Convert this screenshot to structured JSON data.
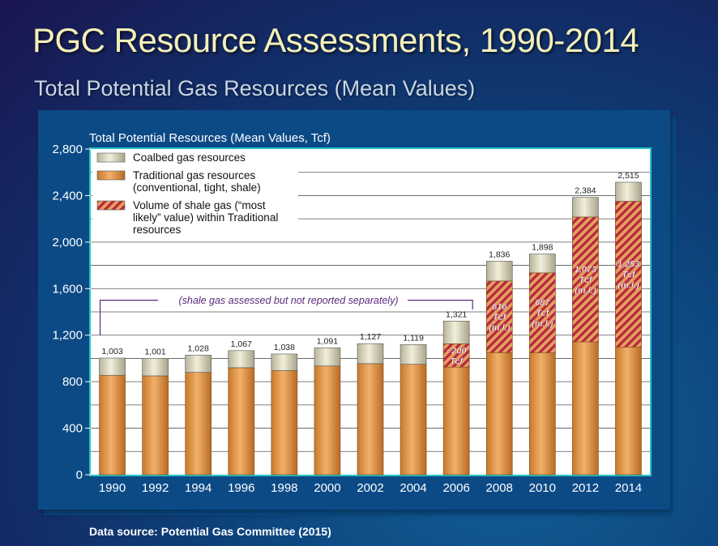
{
  "slide": {
    "title": "PGC Resource Assessments, 1990-2014",
    "subtitle": "Total Potential Gas Resources (Mean Values)",
    "source": "Data source: Potential Gas Committee (2015)"
  },
  "chart_data": {
    "type": "bar",
    "stacked": true,
    "title": "Total Potential Resources (Mean Values, Tcf)",
    "xlabel": "",
    "ylabel": "",
    "categories": [
      "1990",
      "1992",
      "1994",
      "1996",
      "1998",
      "2000",
      "2002",
      "2004",
      "2006",
      "2008",
      "2010",
      "2012",
      "2014"
    ],
    "ylim": [
      0,
      2800
    ],
    "yticks": [
      0,
      400,
      800,
      1200,
      1600,
      2000,
      2400,
      2800
    ],
    "ytick_labels": [
      "0",
      "400",
      "800",
      "1,200",
      "1,600",
      "2,000",
      "2,400",
      "2,800"
    ],
    "grid": true,
    "series": [
      {
        "name": "Traditional gas resources (conventional, tight, shale)",
        "color": "#d98a3a",
        "values": [
          855,
          850,
          880,
          920,
          895,
          935,
          955,
          950,
          1125,
          1665,
          1735,
          2215,
          2350
        ]
      },
      {
        "name": "Coalbed gas resources",
        "color": "#d6d2b6",
        "values": [
          148,
          151,
          148,
          147,
          143,
          156,
          172,
          169,
          196,
          171,
          163,
          169,
          165
        ]
      }
    ],
    "shale_overlay": {
      "name": "Volume of shale gas (“most likely” value) within Traditional resources",
      "values": [
        null,
        null,
        null,
        null,
        null,
        null,
        null,
        null,
        200,
        616,
        687,
        1073,
        1253
      ],
      "labels": [
        null,
        null,
        null,
        null,
        null,
        null,
        null,
        null,
        "~200 Tcf",
        "616 Tcf (m.l.)",
        "687 Tcf (m.l.)",
        "1,073 Tcf (m.l.)",
        "1,253 Tcf (m.l.)"
      ]
    },
    "totals": [
      1003,
      1001,
      1028,
      1067,
      1038,
      1091,
      1127,
      1119,
      1321,
      1836,
      1898,
      2384,
      2515
    ],
    "total_labels": [
      "1,003",
      "1,001",
      "1,028",
      "1,067",
      "1,038",
      "1,091",
      "1,127",
      "1,119",
      "1,321",
      "1,836",
      "1,898",
      "2,384",
      "2,515"
    ],
    "annotation": "(shale gas assessed but not reported separately)",
    "legend": {
      "placement": "top-left",
      "entries": [
        {
          "swatch": "coalbed",
          "lines": [
            "Coalbed gas resources"
          ]
        },
        {
          "swatch": "traditional",
          "lines": [
            "Traditional gas resources",
            "(conventional, tight, shale)"
          ]
        },
        {
          "swatch": "shale",
          "lines": [
            "Volume of shale gas (“most",
            "likely” value) within Traditional",
            "resources"
          ]
        }
      ]
    }
  }
}
